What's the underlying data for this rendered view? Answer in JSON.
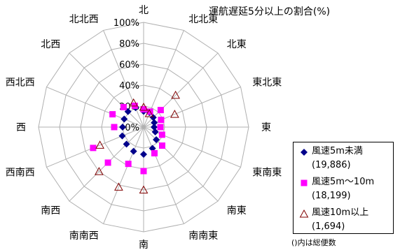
{
  "chart_data": {
    "type": "radar",
    "title": "運航遅延5分以上の割合(%)",
    "directions": [
      "北",
      "北北東",
      "北東",
      "東北東",
      "東",
      "東南東",
      "南東",
      "南南東",
      "南",
      "南南西",
      "南西",
      "西南西",
      "西",
      "西北西",
      "北西",
      "北北西"
    ],
    "r_ticks": [
      "0%",
      "20%",
      "40%",
      "60%",
      "80%",
      "100%"
    ],
    "r_values": [
      0,
      20,
      40,
      60,
      80,
      100
    ],
    "rlim": [
      0,
      100
    ],
    "grid": true,
    "legend_position": "bottom-right",
    "series": [
      {
        "name": "風速5m未満",
        "count_label": "(19,886)",
        "marker": "diamond",
        "color": "#00008B",
        "values": [
          15,
          15,
          13,
          11,
          10,
          12,
          17,
          22,
          26,
          25,
          23,
          22,
          20,
          20,
          21,
          20
        ]
      },
      {
        "name": "風速5m〜10m",
        "count_label": "(18,199)",
        "marker": "square",
        "color": "#FF00FF",
        "values": [
          17,
          16,
          23,
          18,
          16,
          19,
          25,
          27,
          42,
          38,
          48,
          52,
          28,
          32,
          27,
          22
        ]
      },
      {
        "name": "風速10m以上",
        "count_label": "(1,694)",
        "marker": "triangle-open",
        "color": "#800000",
        "values": [
          19,
          14,
          43,
          32,
          null,
          null,
          null,
          null,
          60,
          62,
          60,
          45,
          null,
          null,
          null,
          25
        ]
      }
    ]
  },
  "legend_note": "()内は総便数"
}
